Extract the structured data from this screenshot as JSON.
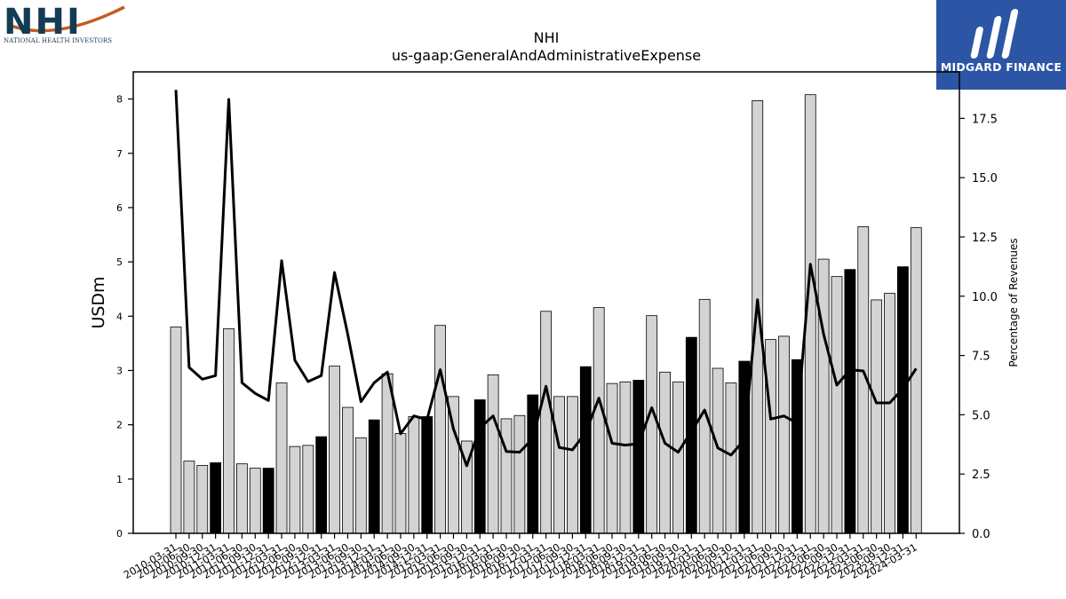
{
  "logos": {
    "left_wordmark": "NHI",
    "left_subtitle": "NATIONAL HEALTH INVESTORS",
    "right_brand": "MIDGARD FINANCE"
  },
  "colors": {
    "bar_default": "#d3d3d3",
    "bar_highlight": "#000000",
    "line": "#000000",
    "brand_blue": "#2c55a5",
    "nhi_navy": "#123c53",
    "nhi_orange": "#c65a24"
  },
  "chart_data": {
    "type": "bar",
    "title": "NHI",
    "subtitle": "us-gaap:GeneralAndAdministrativeExpense",
    "ylabel": "USDm",
    "y2label": "Percentage of Revenues",
    "ylim": [
      0,
      8.5
    ],
    "y2lim": [
      0,
      19.46
    ],
    "yticks": [
      "0",
      "1",
      "2",
      "3",
      "4",
      "5",
      "6",
      "7",
      "8"
    ],
    "y2ticks": [
      "0.0",
      "2.5",
      "5.0",
      "7.5",
      "10.0",
      "12.5",
      "15.0",
      "17.5"
    ],
    "grid": false,
    "categories": [
      "2010-03-31",
      "2010-06-30",
      "2010-09-30",
      "2010-12-31",
      "2011-03-31",
      "2011-06-30",
      "2011-09-30",
      "2011-12-31",
      "2012-03-31",
      "2012-06-30",
      "2012-09-30",
      "2012-12-31",
      "2013-03-31",
      "2013-06-30",
      "2013-09-30",
      "2013-12-31",
      "2014-03-31",
      "2014-06-30",
      "2014-09-30",
      "2014-12-31",
      "2015-03-31",
      "2015-06-30",
      "2015-09-30",
      "2015-12-31",
      "2016-03-31",
      "2016-06-30",
      "2016-09-30",
      "2016-12-31",
      "2017-03-31",
      "2017-06-30",
      "2017-09-30",
      "2017-12-31",
      "2018-03-31",
      "2018-06-30",
      "2018-09-30",
      "2018-12-31",
      "2019-03-31",
      "2019-06-30",
      "2019-09-30",
      "2019-12-31",
      "2020-03-31",
      "2020-06-30",
      "2020-09-30",
      "2020-12-31",
      "2021-03-31",
      "2021-06-30",
      "2021-09-30",
      "2021-12-31",
      "2022-03-31",
      "2022-06-30",
      "2022-09-30",
      "2022-12-31",
      "2023-03-31",
      "2023-06-30",
      "2023-09-30",
      "2023-12-31",
      "2024-03-31"
    ],
    "tick_labels": [
      "2010-03-31",
      "2010-06-30",
      "2010-09-30",
      "2010-12-31",
      "2011-03-31",
      "2011-06-30",
      "2011-09-30",
      "2011-12-31",
      "2012-03-31",
      "2012-06-30",
      "2012-09-30",
      "2012-12-31",
      "2013-03-31",
      "2013-06-30",
      "2013-09-30",
      "2013-12-31",
      "2014-03-31",
      "2014-06-30",
      "2014-09-30",
      "2014-12-31",
      "2015-03-31",
      "2015-06-30",
      "2015-09-30",
      "2015-12-31",
      "2016-03-31",
      "2016-06-30",
      "2016-09-30",
      "2016-12-31",
      "2017-03-31",
      "2017-06-30",
      "2017-09-30",
      "2017-12-31",
      "2018-03-31",
      "2018-06-30",
      "2018-09-30",
      "2018-12-31",
      "2019-03-31",
      "2019-06-30",
      "2019-09-30",
      "2019-12-31",
      "2020-03-31",
      "2020-06-30",
      "2020-09-30",
      "2020-12-31",
      "2021-03-31",
      "2021-06-30",
      "2021-09-30",
      "2021-12-31",
      "2022-03-31",
      "2022-06-30",
      "2022-09-30",
      "2022-12-31",
      "2023-03-31",
      "2023-06-30",
      "2023-09-30",
      "2023-12-31",
      "2024-03-31"
    ],
    "series": [
      {
        "kind": "bar",
        "axis": "left",
        "values": [
          3.8,
          1.33,
          1.25,
          1.3,
          3.77,
          1.28,
          1.2,
          1.2,
          2.77,
          1.6,
          1.62,
          1.78,
          3.08,
          2.32,
          1.76,
          2.09,
          2.94,
          1.84,
          2.15,
          2.15,
          3.83,
          2.52,
          1.7,
          2.46,
          2.92,
          2.11,
          2.17,
          2.55,
          4.09,
          2.52,
          2.52,
          3.07,
          4.16,
          2.76,
          2.79,
          2.82,
          4.01,
          2.97,
          2.79,
          3.61,
          4.31,
          3.04,
          2.77,
          3.17,
          7.97,
          3.57,
          3.63,
          3.2,
          8.08,
          5.05,
          4.73,
          4.86,
          5.65,
          4.3,
          4.42,
          4.91,
          5.63
        ],
        "highlight": [
          false,
          false,
          false,
          true,
          false,
          false,
          false,
          true,
          false,
          false,
          false,
          true,
          false,
          false,
          false,
          true,
          false,
          false,
          false,
          true,
          false,
          false,
          false,
          true,
          false,
          false,
          false,
          true,
          false,
          false,
          false,
          true,
          false,
          false,
          false,
          true,
          false,
          false,
          false,
          true,
          false,
          false,
          false,
          true,
          false,
          false,
          false,
          true,
          false,
          false,
          false,
          true,
          false,
          false,
          false,
          true,
          false
        ]
      },
      {
        "kind": "line",
        "axis": "right",
        "values": [
          18.7,
          7.0,
          6.5,
          6.65,
          18.3,
          6.35,
          5.9,
          5.6,
          11.5,
          7.3,
          6.4,
          6.65,
          11.0,
          8.4,
          5.55,
          6.35,
          6.8,
          4.2,
          4.95,
          4.8,
          6.9,
          4.4,
          2.85,
          4.45,
          4.95,
          3.45,
          3.42,
          4.0,
          6.2,
          3.62,
          3.52,
          4.25,
          5.7,
          3.8,
          3.72,
          3.78,
          5.3,
          3.8,
          3.42,
          4.3,
          5.2,
          3.6,
          3.3,
          3.95,
          9.85,
          4.82,
          4.95,
          4.65,
          11.35,
          8.4,
          6.25,
          6.9,
          6.85,
          5.5,
          5.5,
          6.1,
          6.95
        ]
      }
    ]
  }
}
